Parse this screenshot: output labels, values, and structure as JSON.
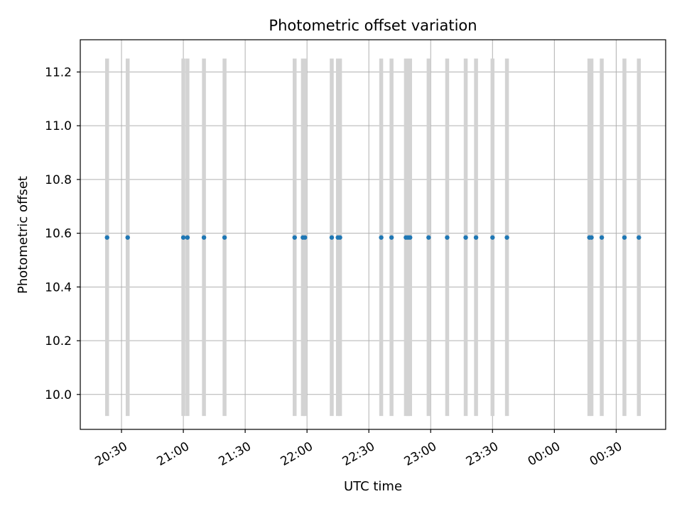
{
  "chart_data": {
    "type": "scatter",
    "title": "Photometric offset variation",
    "xlabel": "UTC time",
    "ylabel": "Photometric offset",
    "x_tick_labels": [
      "20:30",
      "21:00",
      "21:30",
      "22:00",
      "22:30",
      "23:00",
      "23:30",
      "00:00",
      "00:30"
    ],
    "y_tick_labels": [
      "10.0",
      "10.2",
      "10.4",
      "10.6",
      "10.8",
      "11.0",
      "11.2"
    ],
    "xlim": [
      "20:10",
      "00:54"
    ],
    "ylim": [
      9.87,
      11.32
    ],
    "grid": true,
    "colors": {
      "points": "#1f77b4",
      "bands": "#d3d3d3",
      "grid": "#b0b0b0",
      "axes": "#000000"
    },
    "band_range": [
      9.92,
      11.25
    ],
    "series": [
      {
        "values": [
          {
            "x": "20:23",
            "y": 10.584
          },
          {
            "x": "20:33",
            "y": 10.584
          },
          {
            "x": "21:00",
            "y": 10.584
          },
          {
            "x": "21:02",
            "y": 10.584
          },
          {
            "x": "21:10",
            "y": 10.584
          },
          {
            "x": "21:20",
            "y": 10.584
          },
          {
            "x": "21:54",
            "y": 10.584
          },
          {
            "x": "21:58",
            "y": 10.584
          },
          {
            "x": "21:59",
            "y": 10.584
          },
          {
            "x": "22:12",
            "y": 10.584
          },
          {
            "x": "22:15",
            "y": 10.584
          },
          {
            "x": "22:16",
            "y": 10.584
          },
          {
            "x": "22:36",
            "y": 10.584
          },
          {
            "x": "22:41",
            "y": 10.584
          },
          {
            "x": "22:48",
            "y": 10.584
          },
          {
            "x": "22:49",
            "y": 10.584
          },
          {
            "x": "22:50",
            "y": 10.584
          },
          {
            "x": "22:59",
            "y": 10.584
          },
          {
            "x": "23:08",
            "y": 10.584
          },
          {
            "x": "23:17",
            "y": 10.584
          },
          {
            "x": "23:22",
            "y": 10.584
          },
          {
            "x": "23:30",
            "y": 10.584
          },
          {
            "x": "23:37",
            "y": 10.584
          },
          {
            "x": "00:17",
            "y": 10.584
          },
          {
            "x": "00:18",
            "y": 10.584
          },
          {
            "x": "00:23",
            "y": 10.584
          },
          {
            "x": "00:34",
            "y": 10.584
          },
          {
            "x": "00:41",
            "y": 10.584
          }
        ]
      }
    ]
  }
}
